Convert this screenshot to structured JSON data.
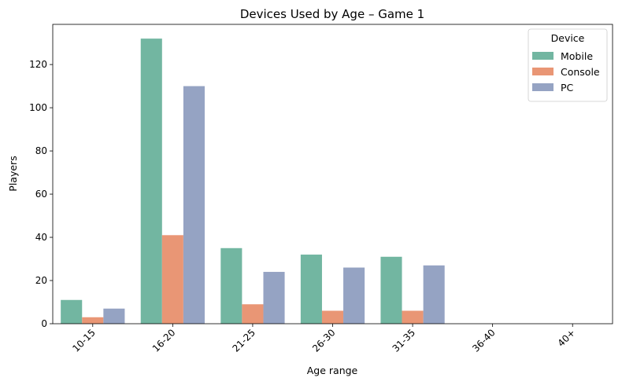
{
  "chart_data": {
    "type": "bar",
    "title": "Devices Used by Age – Game 1",
    "xlabel": "Age range",
    "ylabel": "Players",
    "categories": [
      "10-15",
      "16-20",
      "21-25",
      "26-30",
      "31-35",
      "36-40",
      "40+"
    ],
    "series": [
      {
        "name": "Mobile",
        "color": "#72b6a1",
        "values": [
          11,
          132,
          35,
          32,
          31,
          0,
          0
        ]
      },
      {
        "name": "Console",
        "color": "#e99675",
        "values": [
          3,
          41,
          9,
          6,
          6,
          0,
          0
        ]
      },
      {
        "name": "PC",
        "color": "#95a3c3",
        "values": [
          7,
          110,
          24,
          26,
          27,
          0,
          0
        ]
      }
    ],
    "ylim": [
      0,
      138.6
    ],
    "yticks": [
      0,
      20,
      40,
      60,
      80,
      100,
      120
    ],
    "grid": false,
    "legend": {
      "title": "Device",
      "position": "top-right"
    }
  }
}
